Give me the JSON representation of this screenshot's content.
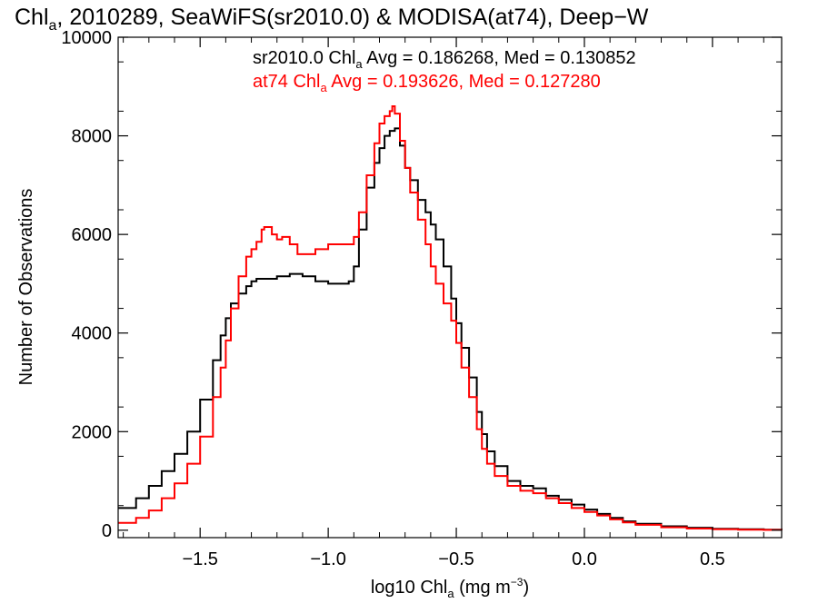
{
  "chart_data": {
    "type": "line",
    "title_prefix": "Chl",
    "title_sub": "a",
    "title_rest": ", 2010289, SeaWiFS(sr2010.0) & MODISA(at74), Deep−W",
    "xlabel_prefix": "log10 Chl",
    "xlabel_sub": "a",
    "xlabel_unit": " (mg m",
    "xlabel_sup": "−3",
    "xlabel_close": ")",
    "ylabel": "Number of Observations",
    "xlim": [
      -1.82,
      0.77
    ],
    "ylim": [
      -150,
      10000
    ],
    "x_ticks": [
      -1.5,
      -1.0,
      -0.5,
      0.0,
      0.5
    ],
    "x_tick_labels": [
      "−1.5",
      "−1.0",
      "−0.5",
      "0.0",
      "0.5"
    ],
    "y_ticks": [
      0,
      2000,
      4000,
      6000,
      8000,
      10000
    ],
    "y_tick_labels": [
      "0",
      "2000",
      "4000",
      "6000",
      "8000",
      "10000"
    ],
    "grid": false,
    "series": [
      {
        "name": "sr2010.0",
        "color": "#000000",
        "stat_prefix": "sr2010.0 Chl",
        "stat_sub": "a",
        "stat_rest": " Avg = 0.186268, Med = 0.130852",
        "x": [
          -1.82,
          -1.75,
          -1.7,
          -1.65,
          -1.6,
          -1.55,
          -1.5,
          -1.45,
          -1.42,
          -1.4,
          -1.38,
          -1.35,
          -1.32,
          -1.3,
          -1.28,
          -1.25,
          -1.2,
          -1.15,
          -1.1,
          -1.05,
          -1.0,
          -0.95,
          -0.92,
          -0.9,
          -0.88,
          -0.85,
          -0.82,
          -0.8,
          -0.78,
          -0.76,
          -0.74,
          -0.72,
          -0.7,
          -0.68,
          -0.65,
          -0.62,
          -0.6,
          -0.58,
          -0.55,
          -0.52,
          -0.5,
          -0.48,
          -0.45,
          -0.42,
          -0.4,
          -0.38,
          -0.35,
          -0.3,
          -0.25,
          -0.2,
          -0.15,
          -0.1,
          -0.05,
          0.0,
          0.05,
          0.1,
          0.15,
          0.2,
          0.3,
          0.4,
          0.5,
          0.6,
          0.7,
          0.77
        ],
        "y": [
          450,
          650,
          900,
          1200,
          1550,
          2000,
          2650,
          3450,
          3950,
          4300,
          4600,
          4800,
          4950,
          5050,
          5100,
          5100,
          5150,
          5200,
          5150,
          5050,
          5000,
          5000,
          5050,
          5350,
          6100,
          6950,
          7450,
          7750,
          8000,
          8100,
          8150,
          7800,
          7350,
          7100,
          6700,
          6450,
          6200,
          5900,
          5350,
          4700,
          4200,
          3700,
          3100,
          2400,
          1950,
          1600,
          1300,
          1000,
          900,
          850,
          700,
          620,
          520,
          420,
          330,
          250,
          180,
          130,
          80,
          50,
          30,
          20,
          10,
          5
        ]
      },
      {
        "name": "at74",
        "color": "#ff0000",
        "stat_prefix": "at74 Chl",
        "stat_sub": "a",
        "stat_rest": " Avg = 0.193626, Med = 0.127280",
        "x": [
          -1.82,
          -1.75,
          -1.7,
          -1.65,
          -1.6,
          -1.55,
          -1.5,
          -1.45,
          -1.42,
          -1.4,
          -1.38,
          -1.35,
          -1.32,
          -1.3,
          -1.28,
          -1.26,
          -1.25,
          -1.22,
          -1.2,
          -1.18,
          -1.15,
          -1.12,
          -1.1,
          -1.05,
          -1.0,
          -0.95,
          -0.92,
          -0.9,
          -0.88,
          -0.85,
          -0.82,
          -0.8,
          -0.78,
          -0.76,
          -0.75,
          -0.74,
          -0.72,
          -0.7,
          -0.68,
          -0.65,
          -0.62,
          -0.6,
          -0.58,
          -0.55,
          -0.52,
          -0.5,
          -0.48,
          -0.45,
          -0.42,
          -0.4,
          -0.38,
          -0.35,
          -0.3,
          -0.25,
          -0.2,
          -0.15,
          -0.1,
          -0.05,
          0.0,
          0.05,
          0.1,
          0.15,
          0.2,
          0.3,
          0.4,
          0.5,
          0.6,
          0.7,
          0.77
        ],
        "y": [
          150,
          250,
          400,
          650,
          950,
          1350,
          1900,
          2700,
          3300,
          3850,
          4500,
          5150,
          5550,
          5700,
          5850,
          6100,
          6150,
          6000,
          5900,
          5950,
          5800,
          5600,
          5600,
          5700,
          5800,
          5800,
          5800,
          5950,
          6450,
          7200,
          7850,
          8250,
          8400,
          8500,
          8600,
          8450,
          7900,
          7350,
          6850,
          6300,
          5800,
          5350,
          5000,
          4600,
          4250,
          3800,
          3300,
          2700,
          2050,
          1650,
          1350,
          1100,
          900,
          800,
          750,
          650,
          550,
          450,
          370,
          300,
          220,
          160,
          110,
          60,
          35,
          20,
          12,
          6,
          3
        ]
      }
    ]
  }
}
